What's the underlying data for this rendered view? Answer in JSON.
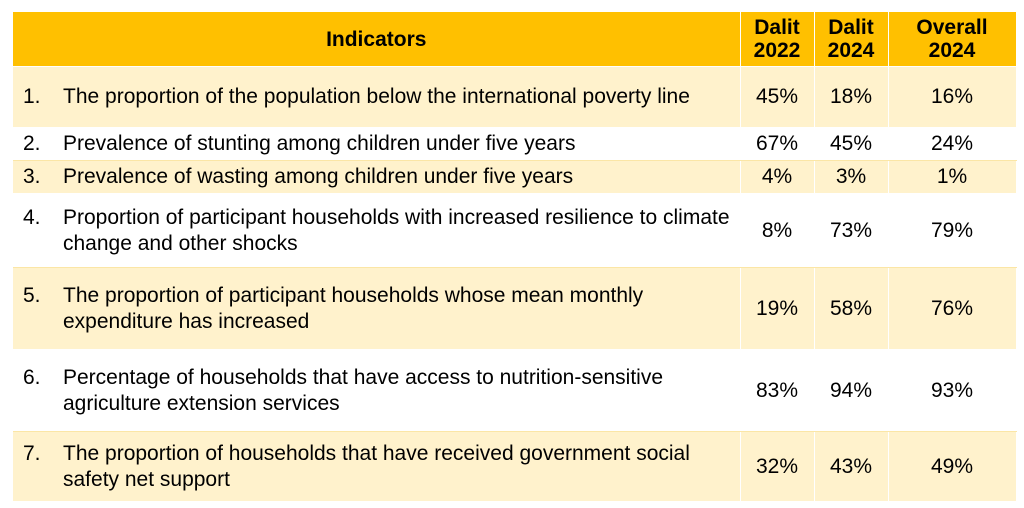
{
  "header": {
    "indicators": "Indicators",
    "col1": [
      "Dalit",
      "2022"
    ],
    "col2": [
      "Dalit",
      "2024"
    ],
    "col3": [
      "Overall",
      "2024"
    ]
  },
  "rows": [
    {
      "num": "1.",
      "text": "The proportion of the population below the international poverty line",
      "dalit2022": "45%",
      "dalit2024": "18%",
      "overall2024": "16%"
    },
    {
      "num": "2.",
      "text": "Prevalence of stunting among children under five years",
      "dalit2022": "67%",
      "dalit2024": "45%",
      "overall2024": "24%"
    },
    {
      "num": "3.",
      "text": "Prevalence of wasting among children under five years",
      "dalit2022": "4%",
      "dalit2024": "3%",
      "overall2024": "1%"
    },
    {
      "num": "4.",
      "text": "Proportion of participant households with increased resilience to climate change and other shocks",
      "dalit2022": "8%",
      "dalit2024": "73%",
      "overall2024": "79%"
    },
    {
      "num": "5.",
      "text": "The proportion of participant households whose mean monthly expenditure has increased",
      "dalit2022": "19%",
      "dalit2024": "58%",
      "overall2024": "76%"
    },
    {
      "num": "6.",
      "text": "Percentage of households that have access to nutrition-sensitive agriculture extension services",
      "dalit2022": "83%",
      "dalit2024": "94%",
      "overall2024": "93%"
    },
    {
      "num": "7.",
      "text": "The proportion of households that have received government social safety net support",
      "dalit2022": "32%",
      "dalit2024": "43%",
      "overall2024": "49%"
    }
  ]
}
